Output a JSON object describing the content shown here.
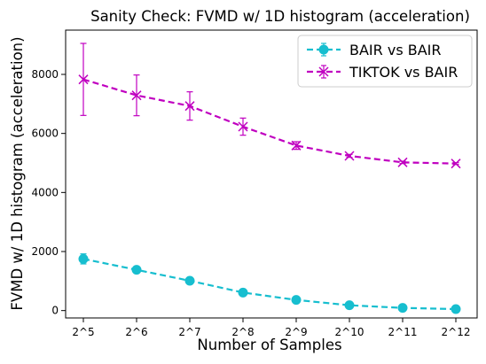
{
  "chart_data": {
    "type": "line",
    "title": "Sanity Check: FVMD w/ 1D histogram (acceleration)",
    "xlabel": "Number of Samples",
    "ylabel": "FVMD w/ 1D histogram (acceleration)",
    "categories": [
      "2^5",
      "2^6",
      "2^7",
      "2^8",
      "2^9",
      "2^10",
      "2^11",
      "2^12"
    ],
    "yticks": [
      0,
      2000,
      4000,
      6000,
      8000
    ],
    "ylim": [
      -250,
      9500
    ],
    "grid": false,
    "legend_position": "top-right",
    "series": [
      {
        "name": "BAIR vs BAIR",
        "color": "#17becf",
        "marker": "circle",
        "values": [
          1750,
          1380,
          1010,
          610,
          360,
          180,
          90,
          50
        ],
        "errors": [
          170,
          60,
          40,
          30,
          20,
          15,
          10,
          10
        ]
      },
      {
        "name": "TIKTOK vs BAIR",
        "color": "#c000c0",
        "marker": "x",
        "values": [
          7830,
          7290,
          6930,
          6230,
          5590,
          5240,
          5020,
          4980
        ],
        "errors": [
          1220,
          690,
          480,
          290,
          130,
          50,
          40,
          30
        ]
      }
    ]
  }
}
